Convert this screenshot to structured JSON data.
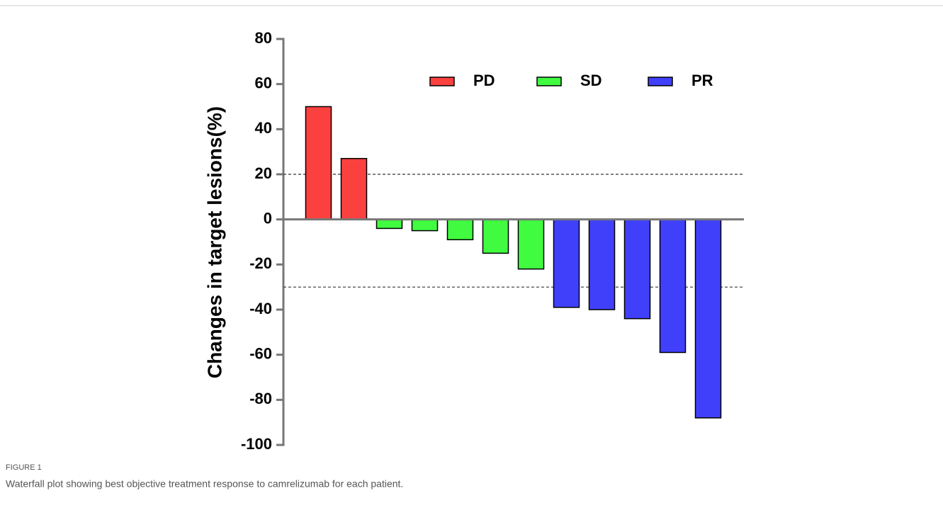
{
  "chart_data": {
    "type": "bar",
    "ylabel": "Changes in target lesions(%)",
    "categories": [
      null,
      null,
      null,
      null,
      null,
      null,
      null,
      null,
      null,
      null,
      null,
      null
    ],
    "series": [
      {
        "name": "PD",
        "color": "#fb4040",
        "values": [
          50,
          27,
          null,
          null,
          null,
          null,
          null,
          null,
          null,
          null,
          null,
          null
        ]
      },
      {
        "name": "SD",
        "color": "#40fb40",
        "values": [
          null,
          null,
          -4,
          -5,
          -9,
          -15,
          -22,
          null,
          null,
          null,
          null,
          null
        ]
      },
      {
        "name": "PR",
        "color": "#4040fb",
        "values": [
          null,
          null,
          null,
          null,
          null,
          null,
          null,
          -39,
          -40,
          -44,
          -59,
          -88
        ]
      }
    ],
    "ylim": [
      -100,
      80
    ],
    "yticks": [
      -100,
      -80,
      -60,
      -40,
      -20,
      0,
      20,
      40,
      60,
      80
    ],
    "reference_lines": [
      20,
      -30
    ],
    "legend": "top-right"
  },
  "figure": {
    "label": "FIGURE 1",
    "caption": "Waterfall plot showing best objective treatment response to camrelizumab for each patient."
  }
}
